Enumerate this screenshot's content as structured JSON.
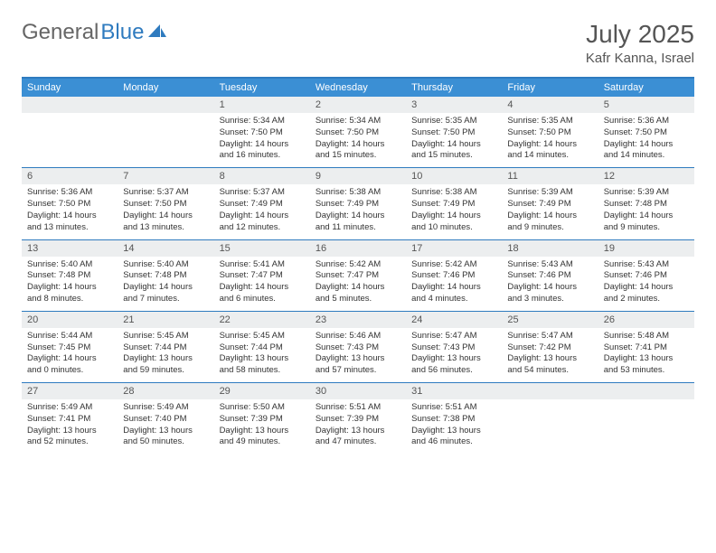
{
  "brand": {
    "part1": "General",
    "part2": "Blue"
  },
  "title": "July 2025",
  "location": "Kafr Kanna, Israel",
  "colors": {
    "header_bg": "#3b8fd4",
    "rule": "#2f7bbf",
    "numrow_bg": "#eceeef",
    "text": "#333333",
    "muted": "#555555",
    "page_bg": "#ffffff"
  },
  "day_names": [
    "Sunday",
    "Monday",
    "Tuesday",
    "Wednesday",
    "Thursday",
    "Friday",
    "Saturday"
  ],
  "weeks": [
    [
      {
        "n": "",
        "lines": []
      },
      {
        "n": "",
        "lines": []
      },
      {
        "n": "1",
        "lines": [
          "Sunrise: 5:34 AM",
          "Sunset: 7:50 PM",
          "Daylight: 14 hours",
          "and 16 minutes."
        ]
      },
      {
        "n": "2",
        "lines": [
          "Sunrise: 5:34 AM",
          "Sunset: 7:50 PM",
          "Daylight: 14 hours",
          "and 15 minutes."
        ]
      },
      {
        "n": "3",
        "lines": [
          "Sunrise: 5:35 AM",
          "Sunset: 7:50 PM",
          "Daylight: 14 hours",
          "and 15 minutes."
        ]
      },
      {
        "n": "4",
        "lines": [
          "Sunrise: 5:35 AM",
          "Sunset: 7:50 PM",
          "Daylight: 14 hours",
          "and 14 minutes."
        ]
      },
      {
        "n": "5",
        "lines": [
          "Sunrise: 5:36 AM",
          "Sunset: 7:50 PM",
          "Daylight: 14 hours",
          "and 14 minutes."
        ]
      }
    ],
    [
      {
        "n": "6",
        "lines": [
          "Sunrise: 5:36 AM",
          "Sunset: 7:50 PM",
          "Daylight: 14 hours",
          "and 13 minutes."
        ]
      },
      {
        "n": "7",
        "lines": [
          "Sunrise: 5:37 AM",
          "Sunset: 7:50 PM",
          "Daylight: 14 hours",
          "and 13 minutes."
        ]
      },
      {
        "n": "8",
        "lines": [
          "Sunrise: 5:37 AM",
          "Sunset: 7:49 PM",
          "Daylight: 14 hours",
          "and 12 minutes."
        ]
      },
      {
        "n": "9",
        "lines": [
          "Sunrise: 5:38 AM",
          "Sunset: 7:49 PM",
          "Daylight: 14 hours",
          "and 11 minutes."
        ]
      },
      {
        "n": "10",
        "lines": [
          "Sunrise: 5:38 AM",
          "Sunset: 7:49 PM",
          "Daylight: 14 hours",
          "and 10 minutes."
        ]
      },
      {
        "n": "11",
        "lines": [
          "Sunrise: 5:39 AM",
          "Sunset: 7:49 PM",
          "Daylight: 14 hours",
          "and 9 minutes."
        ]
      },
      {
        "n": "12",
        "lines": [
          "Sunrise: 5:39 AM",
          "Sunset: 7:48 PM",
          "Daylight: 14 hours",
          "and 9 minutes."
        ]
      }
    ],
    [
      {
        "n": "13",
        "lines": [
          "Sunrise: 5:40 AM",
          "Sunset: 7:48 PM",
          "Daylight: 14 hours",
          "and 8 minutes."
        ]
      },
      {
        "n": "14",
        "lines": [
          "Sunrise: 5:40 AM",
          "Sunset: 7:48 PM",
          "Daylight: 14 hours",
          "and 7 minutes."
        ]
      },
      {
        "n": "15",
        "lines": [
          "Sunrise: 5:41 AM",
          "Sunset: 7:47 PM",
          "Daylight: 14 hours",
          "and 6 minutes."
        ]
      },
      {
        "n": "16",
        "lines": [
          "Sunrise: 5:42 AM",
          "Sunset: 7:47 PM",
          "Daylight: 14 hours",
          "and 5 minutes."
        ]
      },
      {
        "n": "17",
        "lines": [
          "Sunrise: 5:42 AM",
          "Sunset: 7:46 PM",
          "Daylight: 14 hours",
          "and 4 minutes."
        ]
      },
      {
        "n": "18",
        "lines": [
          "Sunrise: 5:43 AM",
          "Sunset: 7:46 PM",
          "Daylight: 14 hours",
          "and 3 minutes."
        ]
      },
      {
        "n": "19",
        "lines": [
          "Sunrise: 5:43 AM",
          "Sunset: 7:46 PM",
          "Daylight: 14 hours",
          "and 2 minutes."
        ]
      }
    ],
    [
      {
        "n": "20",
        "lines": [
          "Sunrise: 5:44 AM",
          "Sunset: 7:45 PM",
          "Daylight: 14 hours",
          "and 0 minutes."
        ]
      },
      {
        "n": "21",
        "lines": [
          "Sunrise: 5:45 AM",
          "Sunset: 7:44 PM",
          "Daylight: 13 hours",
          "and 59 minutes."
        ]
      },
      {
        "n": "22",
        "lines": [
          "Sunrise: 5:45 AM",
          "Sunset: 7:44 PM",
          "Daylight: 13 hours",
          "and 58 minutes."
        ]
      },
      {
        "n": "23",
        "lines": [
          "Sunrise: 5:46 AM",
          "Sunset: 7:43 PM",
          "Daylight: 13 hours",
          "and 57 minutes."
        ]
      },
      {
        "n": "24",
        "lines": [
          "Sunrise: 5:47 AM",
          "Sunset: 7:43 PM",
          "Daylight: 13 hours",
          "and 56 minutes."
        ]
      },
      {
        "n": "25",
        "lines": [
          "Sunrise: 5:47 AM",
          "Sunset: 7:42 PM",
          "Daylight: 13 hours",
          "and 54 minutes."
        ]
      },
      {
        "n": "26",
        "lines": [
          "Sunrise: 5:48 AM",
          "Sunset: 7:41 PM",
          "Daylight: 13 hours",
          "and 53 minutes."
        ]
      }
    ],
    [
      {
        "n": "27",
        "lines": [
          "Sunrise: 5:49 AM",
          "Sunset: 7:41 PM",
          "Daylight: 13 hours",
          "and 52 minutes."
        ]
      },
      {
        "n": "28",
        "lines": [
          "Sunrise: 5:49 AM",
          "Sunset: 7:40 PM",
          "Daylight: 13 hours",
          "and 50 minutes."
        ]
      },
      {
        "n": "29",
        "lines": [
          "Sunrise: 5:50 AM",
          "Sunset: 7:39 PM",
          "Daylight: 13 hours",
          "and 49 minutes."
        ]
      },
      {
        "n": "30",
        "lines": [
          "Sunrise: 5:51 AM",
          "Sunset: 7:39 PM",
          "Daylight: 13 hours",
          "and 47 minutes."
        ]
      },
      {
        "n": "31",
        "lines": [
          "Sunrise: 5:51 AM",
          "Sunset: 7:38 PM",
          "Daylight: 13 hours",
          "and 46 minutes."
        ]
      },
      {
        "n": "",
        "lines": []
      },
      {
        "n": "",
        "lines": []
      }
    ]
  ]
}
